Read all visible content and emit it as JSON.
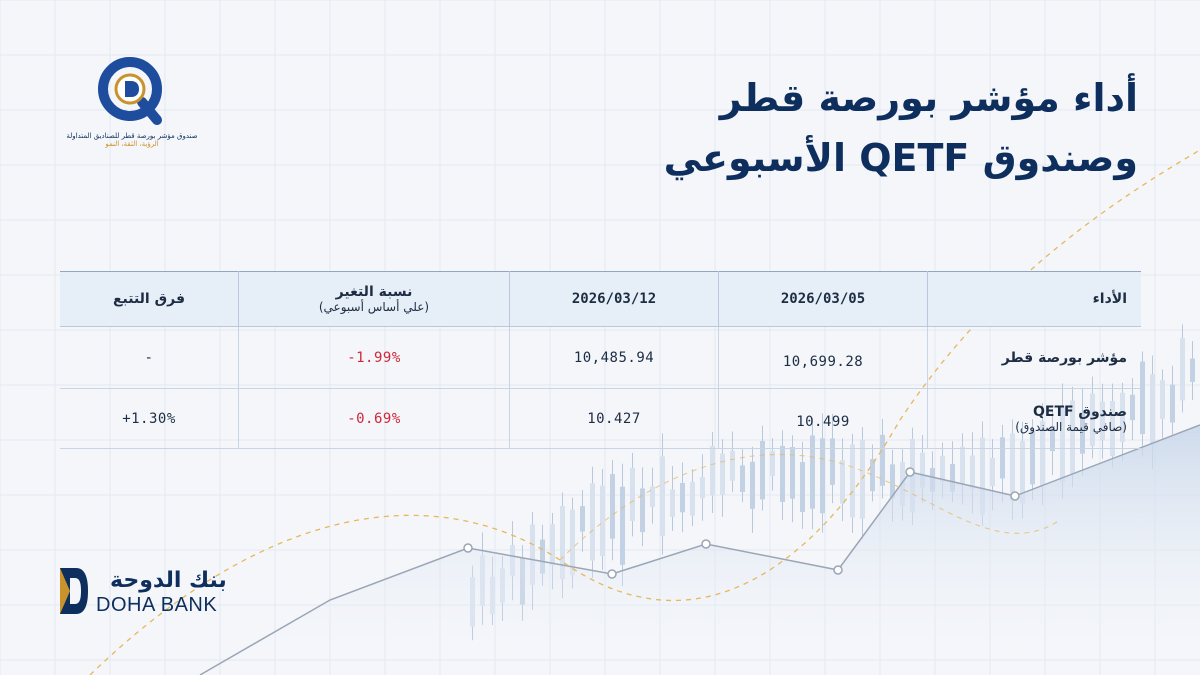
{
  "colors": {
    "navy": "#0e2f5e",
    "gold": "#c9932c",
    "red": "#d0283a",
    "header_bg": "#e6eef7"
  },
  "logo": {
    "letter": "Q",
    "tagline": "صندوق مؤشر بورصة قطر للصناديق المتداولة",
    "slogan": "الرؤية، الثقة، النمو"
  },
  "title": {
    "line1": "أداء مؤشر بورصة قطر",
    "line2": "وصندوق QETF الأسبوعي"
  },
  "table": {
    "headers": {
      "metric": "الأداء",
      "date1": "2026/03/05",
      "date2": "2026/03/12",
      "change": "نسبة التغير",
      "change_sub": "(علي أساس أسبوعي)",
      "tracking": "فرق التتبع"
    },
    "rows": [
      {
        "metric": "مؤشر بورصة قطر",
        "metric_sub": "",
        "date1": "10,699.28",
        "date2": "10,485.94",
        "change": "-1.99%",
        "tracking": "-"
      },
      {
        "metric": "صندوق QETF",
        "metric_sub": "(صافي قيمة الصندوق)",
        "date1": "10.499",
        "date2": "10.427",
        "change": "-0.69%",
        "tracking": "+1.30%"
      }
    ]
  },
  "bank": {
    "name_ar": "بنك الدوحة",
    "name_en": "DOHA BANK"
  }
}
